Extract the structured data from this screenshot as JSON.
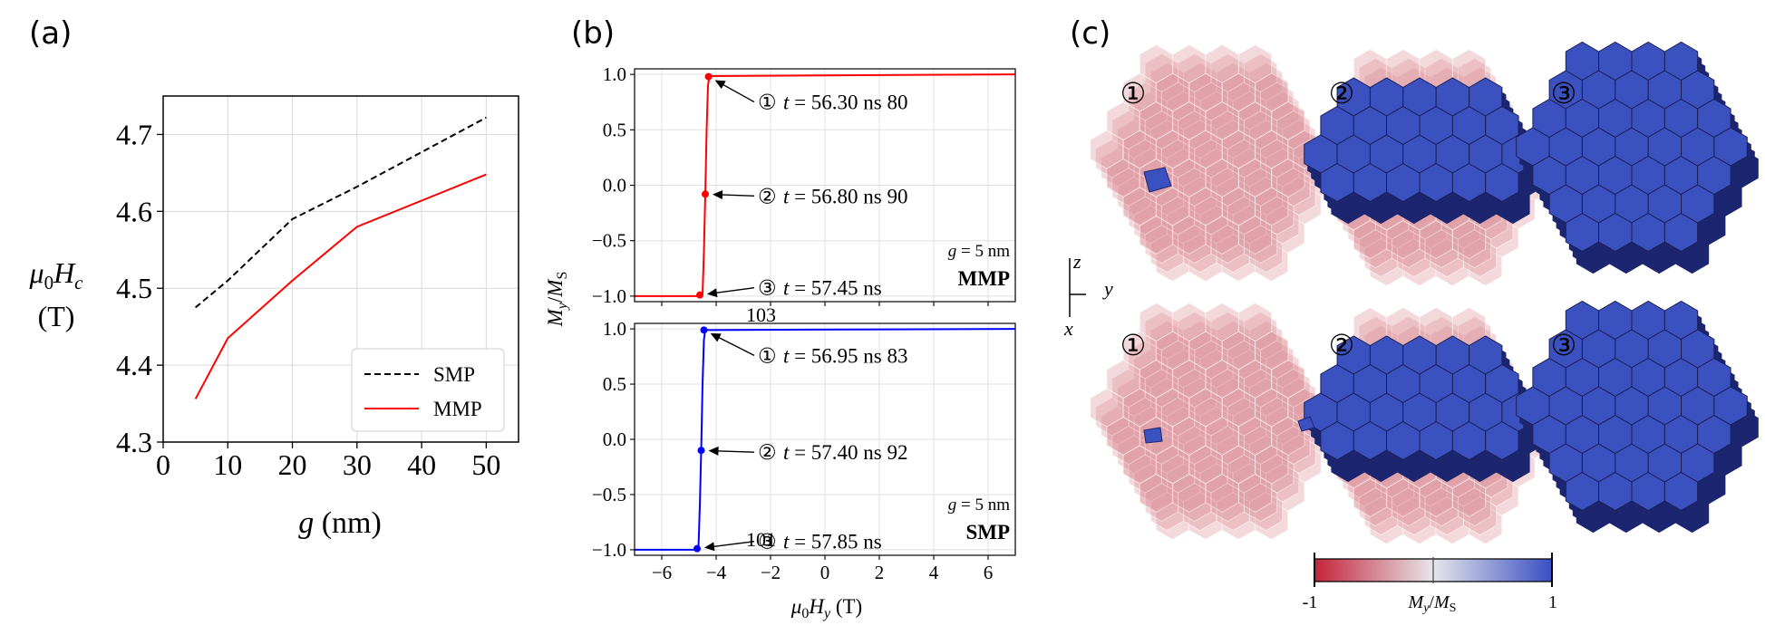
{
  "panel_labels": {
    "a": "(a)",
    "b": "(b)",
    "c": "(c)"
  },
  "chart_data": [
    {
      "panel": "a",
      "type": "line",
      "xlabel_var": "g",
      "xlabel_unit": " (nm)",
      "ylabel_line1_var": "μ",
      "ylabel_line1_sub": "0",
      "ylabel_line1_var2": "H",
      "ylabel_line1_sub2": "c",
      "ylabel_line2": "(T)",
      "xlim": [
        0,
        55
      ],
      "ylim": [
        4.3,
        4.75
      ],
      "xticks": [
        0,
        10,
        20,
        30,
        40,
        50
      ],
      "yticks": [
        4.3,
        4.4,
        4.5,
        4.6,
        4.7
      ],
      "grid": true,
      "legend_position": "lower-right",
      "series": [
        {
          "name": "SMP",
          "color": "#000000",
          "dash": "dashed",
          "x": [
            5,
            10,
            20,
            30,
            50
          ],
          "y": [
            4.475,
            4.51,
            4.59,
            4.632,
            4.722
          ]
        },
        {
          "name": "MMP",
          "color": "#ff0000",
          "dash": "solid",
          "x": [
            5,
            10,
            20,
            30,
            50
          ],
          "y": [
            4.356,
            4.435,
            4.51,
            4.58,
            4.648
          ]
        }
      ]
    },
    {
      "panel": "b-top",
      "type": "line",
      "xlim": [
        -7,
        7
      ],
      "ylim": [
        -1.05,
        1.05
      ],
      "yticks": [
        "1.0",
        "0.5",
        "0.0",
        "−0.5",
        "−1.0"
      ],
      "ytick_values": [
        1.0,
        0.5,
        0.0,
        -0.5,
        -1.0
      ],
      "grid": true,
      "color": "#ff0000",
      "x": [
        -7,
        -4.6,
        -4.5,
        -4.45,
        -4.4,
        -4.35,
        -4.3,
        -4.25,
        7
      ],
      "y": [
        -1.0,
        -1.0,
        -0.98,
        -0.6,
        -0.08,
        0.5,
        0.9,
        0.985,
        1.0
      ],
      "markers": [
        {
          "x": -4.28,
          "y": 0.98,
          "label": "①",
          "text_var": "t",
          "text": " = 56.30 ns",
          "extra": "80"
        },
        {
          "x": -4.4,
          "y": -0.08,
          "label": "②",
          "text_var": "t",
          "text": " = 56.80 ns",
          "extra": "90"
        },
        {
          "x": -4.6,
          "y": -0.99,
          "label": "③",
          "text_var": "t",
          "text": " = 57.45 ns",
          "extra": "103"
        }
      ],
      "annot_g_var": "g",
      "annot_g": " = 5 nm",
      "annot_type": "MMP"
    },
    {
      "panel": "b-bottom",
      "type": "line",
      "xlabel_var": "μ",
      "xlabel_sub": "0",
      "xlabel_var2": "H",
      "xlabel_sub2": "y",
      "xlabel_unit": " (T)",
      "xlim": [
        -7,
        7
      ],
      "ylim": [
        -1.05,
        1.05
      ],
      "xticks": [
        "−6",
        "−4",
        "−2",
        "0",
        "2",
        "4",
        "6"
      ],
      "xtick_values": [
        -6,
        -4,
        -2,
        0,
        2,
        4,
        6
      ],
      "yticks": [
        "1.0",
        "0.5",
        "0.0",
        "−0.5",
        "−1.0"
      ],
      "ytick_values": [
        1.0,
        0.5,
        0.0,
        -0.5,
        -1.0
      ],
      "grid": true,
      "color": "#0000ff",
      "x": [
        -7,
        -4.75,
        -4.65,
        -4.6,
        -4.55,
        -4.5,
        -4.45,
        -4.4,
        7
      ],
      "y": [
        -1.0,
        -1.0,
        -0.98,
        -0.6,
        -0.1,
        0.5,
        0.9,
        0.99,
        1.0
      ],
      "markers": [
        {
          "x": -4.45,
          "y": 0.99,
          "label": "①",
          "text_var": "t",
          "text": " = 56.95 ns",
          "extra": "83"
        },
        {
          "x": -4.55,
          "y": -0.1,
          "label": "②",
          "text_var": "t",
          "text": " = 57.40 ns",
          "extra": "92"
        },
        {
          "x": -4.7,
          "y": -0.99,
          "label": "③",
          "text_var": "t",
          "text": " = 57.85 ns",
          "extra": "101"
        }
      ],
      "annot_g_var": "g",
      "annot_g": " = 5 nm",
      "annot_type": "SMP",
      "shared_ylabel_var": "M",
      "shared_ylabel_sub": "y",
      "shared_ylabel_slash": "/",
      "shared_ylabel_var2": "M",
      "shared_ylabel_sub2": "S"
    }
  ],
  "panel_c": {
    "state_labels": [
      "①",
      "②",
      "③"
    ],
    "axes": {
      "z": "z",
      "y": "y",
      "x": "x"
    },
    "colorbar": {
      "min_label": "-1",
      "max_label": "1",
      "label_var": "M",
      "label_sub": "y",
      "label_slash": "/",
      "label_var2": "M",
      "label_sub2": "S",
      "color_low": "#c4243a",
      "color_mid": "#e6e6ea",
      "color_high": "#3a4fc4"
    },
    "colors": {
      "red": "#d98a92",
      "red_dark": "#b8555e",
      "blue": "#3b51c0",
      "blue_dark": "#1c2670",
      "blue_line": "#1a1f55"
    }
  }
}
